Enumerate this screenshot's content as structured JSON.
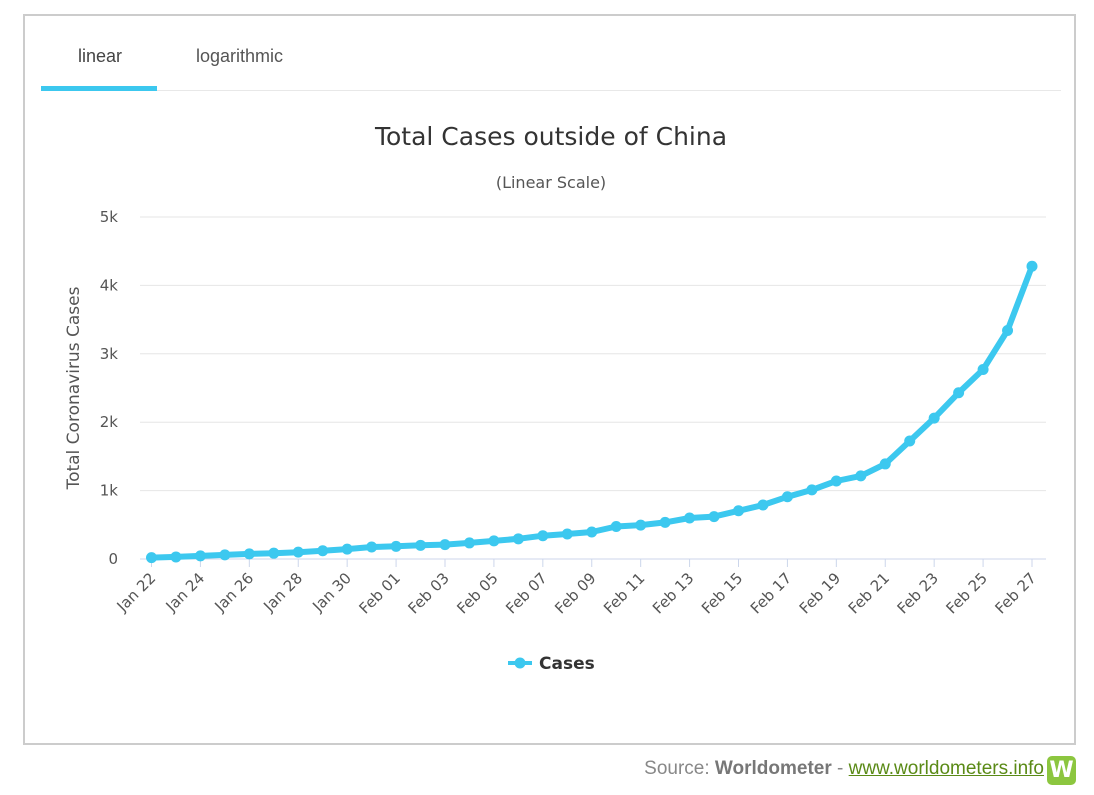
{
  "tabs": [
    {
      "label": "linear"
    },
    {
      "label": "logarithmic"
    }
  ],
  "source": {
    "prefix": "Source:",
    "name": "Worldometer",
    "sep": "-",
    "link": "www.worldometers.info",
    "logo_letter": "W"
  },
  "colors": {
    "series": "#3cc8ef",
    "grid": "#e6e6e6",
    "accent": "#3cc8ef",
    "logo": "#8cc63f"
  },
  "chart_data": {
    "type": "line",
    "title": "Total Cases outside of China",
    "subtitle": "(Linear Scale)",
    "xlabel": "",
    "ylabel": "Total Coronavirus Cases",
    "ylim": [
      0,
      5000
    ],
    "yticks": [
      "0",
      "1k",
      "2k",
      "3k",
      "4k",
      "5k"
    ],
    "ytick_values": [
      0,
      1000,
      2000,
      3000,
      4000,
      5000
    ],
    "grid": true,
    "legend": "bottom-center",
    "categories": [
      "Jan 22",
      "Jan 23",
      "Jan 24",
      "Jan 25",
      "Jan 26",
      "Jan 27",
      "Jan 28",
      "Jan 29",
      "Jan 30",
      "Jan 31",
      "Feb 01",
      "Feb 02",
      "Feb 03",
      "Feb 04",
      "Feb 05",
      "Feb 06",
      "Feb 07",
      "Feb 08",
      "Feb 09",
      "Feb 10",
      "Feb 11",
      "Feb 12",
      "Feb 13",
      "Feb 14",
      "Feb 15",
      "Feb 16",
      "Feb 17",
      "Feb 18",
      "Feb 19",
      "Feb 20",
      "Feb 21",
      "Feb 22",
      "Feb 23",
      "Feb 24",
      "Feb 25",
      "Feb 26",
      "Feb 27"
    ],
    "xtick_labels": [
      "Jan 22",
      "Jan 24",
      "Jan 26",
      "Jan 28",
      "Jan 30",
      "Feb 01",
      "Feb 03",
      "Feb 05",
      "Feb 07",
      "Feb 09",
      "Feb 11",
      "Feb 13",
      "Feb 15",
      "Feb 17",
      "Feb 19",
      "Feb 21",
      "Feb 23",
      "Feb 25",
      "Feb 27"
    ],
    "series": [
      {
        "name": "Cases",
        "values": [
          20,
          30,
          45,
          60,
          75,
          85,
          100,
          120,
          145,
          175,
          185,
          200,
          210,
          235,
          265,
          295,
          340,
          365,
          395,
          475,
          495,
          535,
          600,
          620,
          705,
          790,
          910,
          1010,
          1140,
          1215,
          1390,
          1725,
          2060,
          2430,
          2770,
          3340,
          4280
        ]
      }
    ]
  }
}
